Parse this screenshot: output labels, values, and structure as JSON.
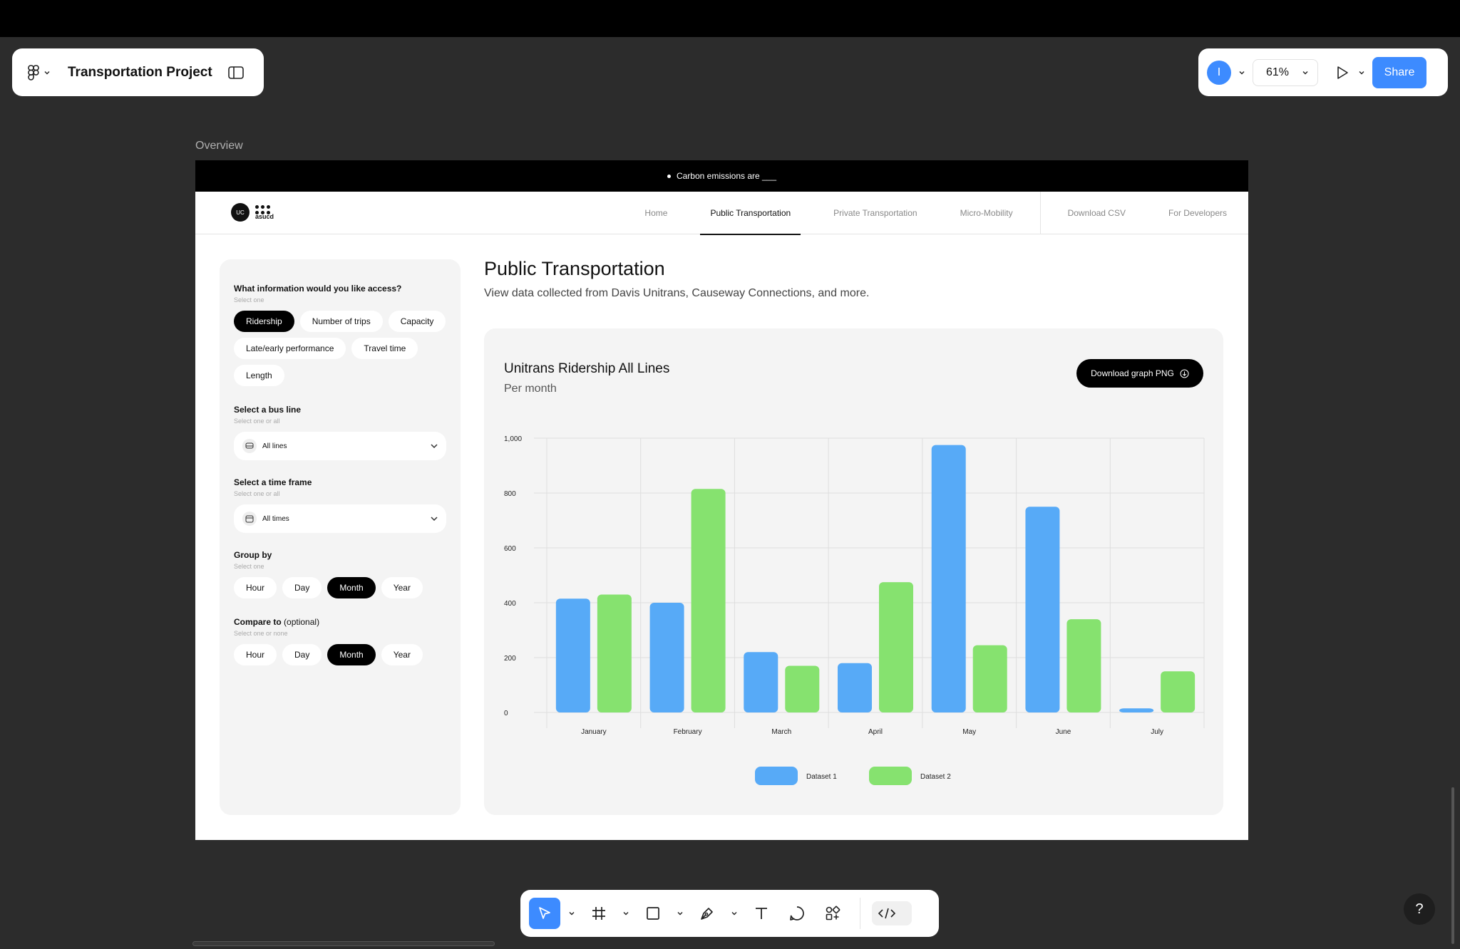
{
  "app": {
    "project_title": "Transportation Project",
    "avatar_initial": "I",
    "zoom": "61%",
    "share_label": "Share",
    "accent_color": "#3d8bff"
  },
  "frame": {
    "label": "Overview",
    "banner_text": "Carbon emissions are ___",
    "brand_name": "asucd",
    "brand_badge": "UC",
    "nav": {
      "home": "Home",
      "public": "Public Transportation",
      "private": "Private Transportation",
      "micro": "Micro-Mobility",
      "csv": "Download CSV",
      "dev": "For Developers"
    },
    "sidebar": {
      "q1": "What information would you like access?",
      "q1_hint": "Select one",
      "info_chips": [
        "Ridership",
        "Number of trips",
        "Capacity",
        "Late/early performance",
        "Travel time",
        "Length"
      ],
      "q2": "Select a bus line",
      "q2_hint": "Select one or all",
      "bus_line_value": "All lines",
      "q3": "Select a time frame",
      "q3_hint": "Select one or all",
      "time_frame_value": "All times",
      "q4": "Group by",
      "q4_hint": "Select one",
      "group_chips": [
        "Hour",
        "Day",
        "Month",
        "Year"
      ],
      "q5": "Compare to",
      "q5_optional": "(optional)",
      "q5_hint": "Select one or none",
      "compare_chips": [
        "Hour",
        "Day",
        "Month",
        "Year"
      ]
    },
    "main": {
      "title": "Public Transportation",
      "subtitle": "View data collected from Davis Unitrans, Causeway Connections, and more."
    },
    "chart_card": {
      "title": "Unitrans Ridership All Lines",
      "subtitle": "Per month",
      "download_label": "Download graph PNG"
    }
  },
  "chart_data": {
    "type": "bar",
    "title": "Unitrans Ridership All Lines",
    "subtitle": "Per month",
    "categories": [
      "January",
      "February",
      "March",
      "April",
      "May",
      "June",
      "July"
    ],
    "series": [
      {
        "name": "Dataset 1",
        "color": "#57aaf7",
        "values": [
          415,
          400,
          220,
          180,
          975,
          750,
          15
        ]
      },
      {
        "name": "Dataset 2",
        "color": "#86e26f",
        "values": [
          430,
          815,
          170,
          475,
          245,
          340,
          150
        ]
      }
    ],
    "yticks": [
      "0",
      "200",
      "400",
      "600",
      "800",
      "1,000"
    ],
    "ylim": [
      0,
      1000
    ],
    "grid": true,
    "legend_position": "bottom-center"
  }
}
